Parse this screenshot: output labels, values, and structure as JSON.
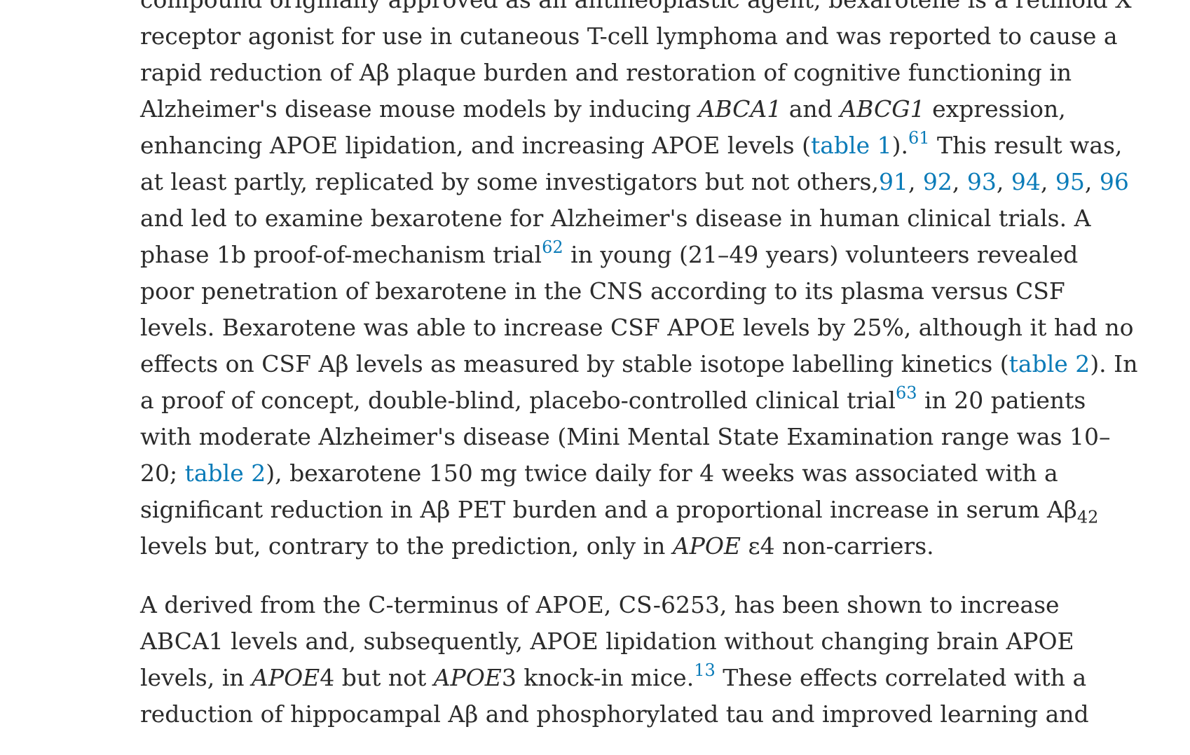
{
  "p1": {
    "l0": "compound originally approved as an antineoplastic agent, bexarotene is a retinoid X",
    "l1": "receptor agonist for use in cutaneous T-cell lymphoma and was reported to cause a",
    "l2": "rapid reduction of Aβ plaque burden and restoration of cognitive functioning in",
    "l3a": "Alzheimer's disease mouse models by inducing ",
    "l3_gene1": "ABCA1",
    "l3b": " and ",
    "l3_gene2": "ABCG1",
    "l3c": " expression,",
    "l4a": "enhancing APOE lipidation, and increasing APOE levels (",
    "l4_table": "table 1",
    "l4b": ").",
    "l4_ref": "61",
    "l4c": " This result was,",
    "l5a": "at least partly, replicated by some investigators but not others,",
    "l5_refs": [
      "91",
      "92",
      "93",
      "94",
      "95",
      "96"
    ],
    "l5_sep": ", ",
    "l6": "and led to examine bexarotene for Alzheimer's disease in human clinical trials. A",
    "l7a": "phase 1b proof-of-mechanism trial",
    "l7_ref": "62",
    "l7b": " in young (21–49 years) volunteers revealed",
    "l8": "poor penetration of bexarotene in the CNS according to its plasma versus CSF",
    "l9": "levels. Bexarotene was able to increase CSF APOE levels by 25%, although it had no",
    "l10a": "effects on CSF Aβ levels as measured by stable isotope labelling kinetics (",
    "l10_table": "table 2",
    "l10b": "). In",
    "l11a": "a proof of concept, double-blind, placebo-controlled clinical trial",
    "l11_ref": "63",
    "l11b": " in 20 patients",
    "l12": "with moderate Alzheimer's disease (Mini Mental State Examination range was 10–",
    "l13a": "20; ",
    "l13_table": "table 2",
    "l13b": "), bexarotene 150 mg twice daily for 4 weeks was associated with a",
    "l14a": "significant reduction in Aβ PET burden and a proportional increase in serum Aβ",
    "l14_sub": "42",
    "l15a": "levels but, contrary to the prediction, only in ",
    "l15_gene": "APOE",
    "l15b": " ε4 non-carriers."
  },
  "p2": {
    "l0": "A derived from the C-terminus of APOE, CS-6253, has been shown to increase",
    "l1": "ABCA1 levels and, subsequently, APOE lipidation without changing brain APOE",
    "l2a": "levels, in ",
    "l2_gene1": "APOE",
    "l2b": "4 but not ",
    "l2_gene2": "APOE",
    "l2c": "3 knock-in mice.",
    "l2_ref": "13",
    "l2d": " These effects correlated with a",
    "l3": "reduction of hippocampal Aβ and phosphorylated tau and improved learning and"
  },
  "colors": {
    "text": "#2b2b2b",
    "link": "#0a7bb8",
    "background": "#ffffff"
  }
}
